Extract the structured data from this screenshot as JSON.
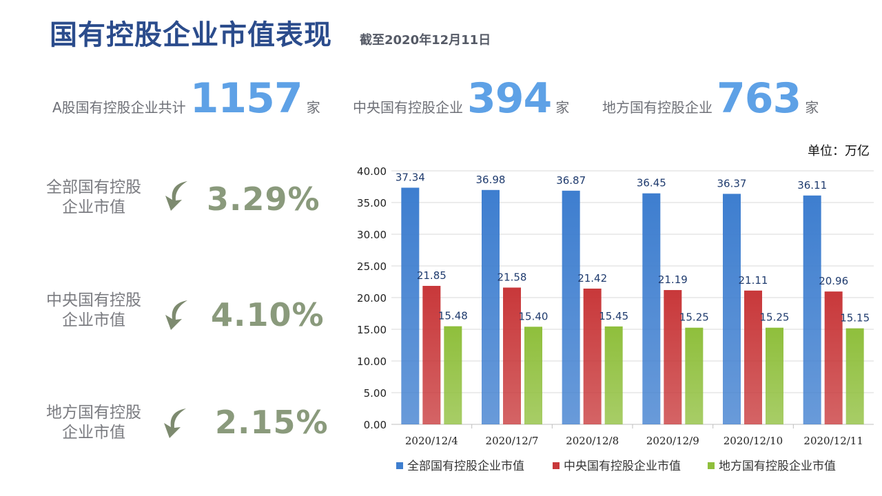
{
  "header": {
    "title": "国有控股企业市值表现",
    "subtitle": "截至2020年12月11日"
  },
  "stats": [
    {
      "label": "A股国有控股企业共计",
      "value": "1157",
      "unit": "家"
    },
    {
      "label": "中央国有控股企业",
      "value": "394",
      "unit": "家"
    },
    {
      "label": "地方国有控股企业",
      "value": "763",
      "unit": "家"
    }
  ],
  "changes": [
    {
      "label_line1": "全部国有控股",
      "label_line2": "企业市值",
      "direction": "down",
      "value": "3.29%"
    },
    {
      "label_line1": "中央国有控股",
      "label_line2": "企业市值",
      "direction": "down",
      "value": "4.10%"
    },
    {
      "label_line1": "地方国有控股",
      "label_line2": "企业市值",
      "direction": "down",
      "value": "2.15%"
    }
  ],
  "unit_label": "单位：万亿",
  "colors": {
    "title": "#2b4c8c",
    "stat_number": "#5ea1e6",
    "change_value": "#8a9a7c",
    "arrow": "#7d8a6f",
    "series_all": "#3e7ecf",
    "series_central": "#c8383a",
    "series_local": "#8fbf3c"
  },
  "chart_data": {
    "type": "bar",
    "categories": [
      "2020/12/4",
      "2020/12/7",
      "2020/12/8",
      "2020/12/9",
      "2020/12/10",
      "2020/12/11"
    ],
    "series": [
      {
        "name": "全部国有控股企业市值",
        "color": "#3e7ecf",
        "values": [
          37.34,
          36.98,
          36.87,
          36.45,
          36.37,
          36.11
        ],
        "labels": [
          "37.34",
          "36.98",
          "36.87",
          "36.45",
          "36.37",
          "36.11"
        ]
      },
      {
        "name": "中央国有控股企业市值",
        "color": "#c8383a",
        "values": [
          21.85,
          21.58,
          21.42,
          21.19,
          21.11,
          20.96
        ],
        "labels": [
          "21.85",
          "21.58",
          "21.42",
          "21.19",
          "21.11",
          "20.96"
        ]
      },
      {
        "name": "地方国有控股企业市值",
        "color": "#8fbf3c",
        "values": [
          15.48,
          15.4,
          15.45,
          15.25,
          15.25,
          15.15
        ],
        "labels": [
          "15.48",
          "15.40",
          "15.45",
          "15.25",
          "15.25",
          "15.15"
        ]
      }
    ],
    "yticks": [
      "0.00",
      "5.00",
      "10.00",
      "15.00",
      "20.00",
      "25.00",
      "30.00",
      "35.00",
      "40.00"
    ],
    "ylim": [
      0,
      40
    ],
    "grid": true,
    "legend_position": "bottom"
  }
}
